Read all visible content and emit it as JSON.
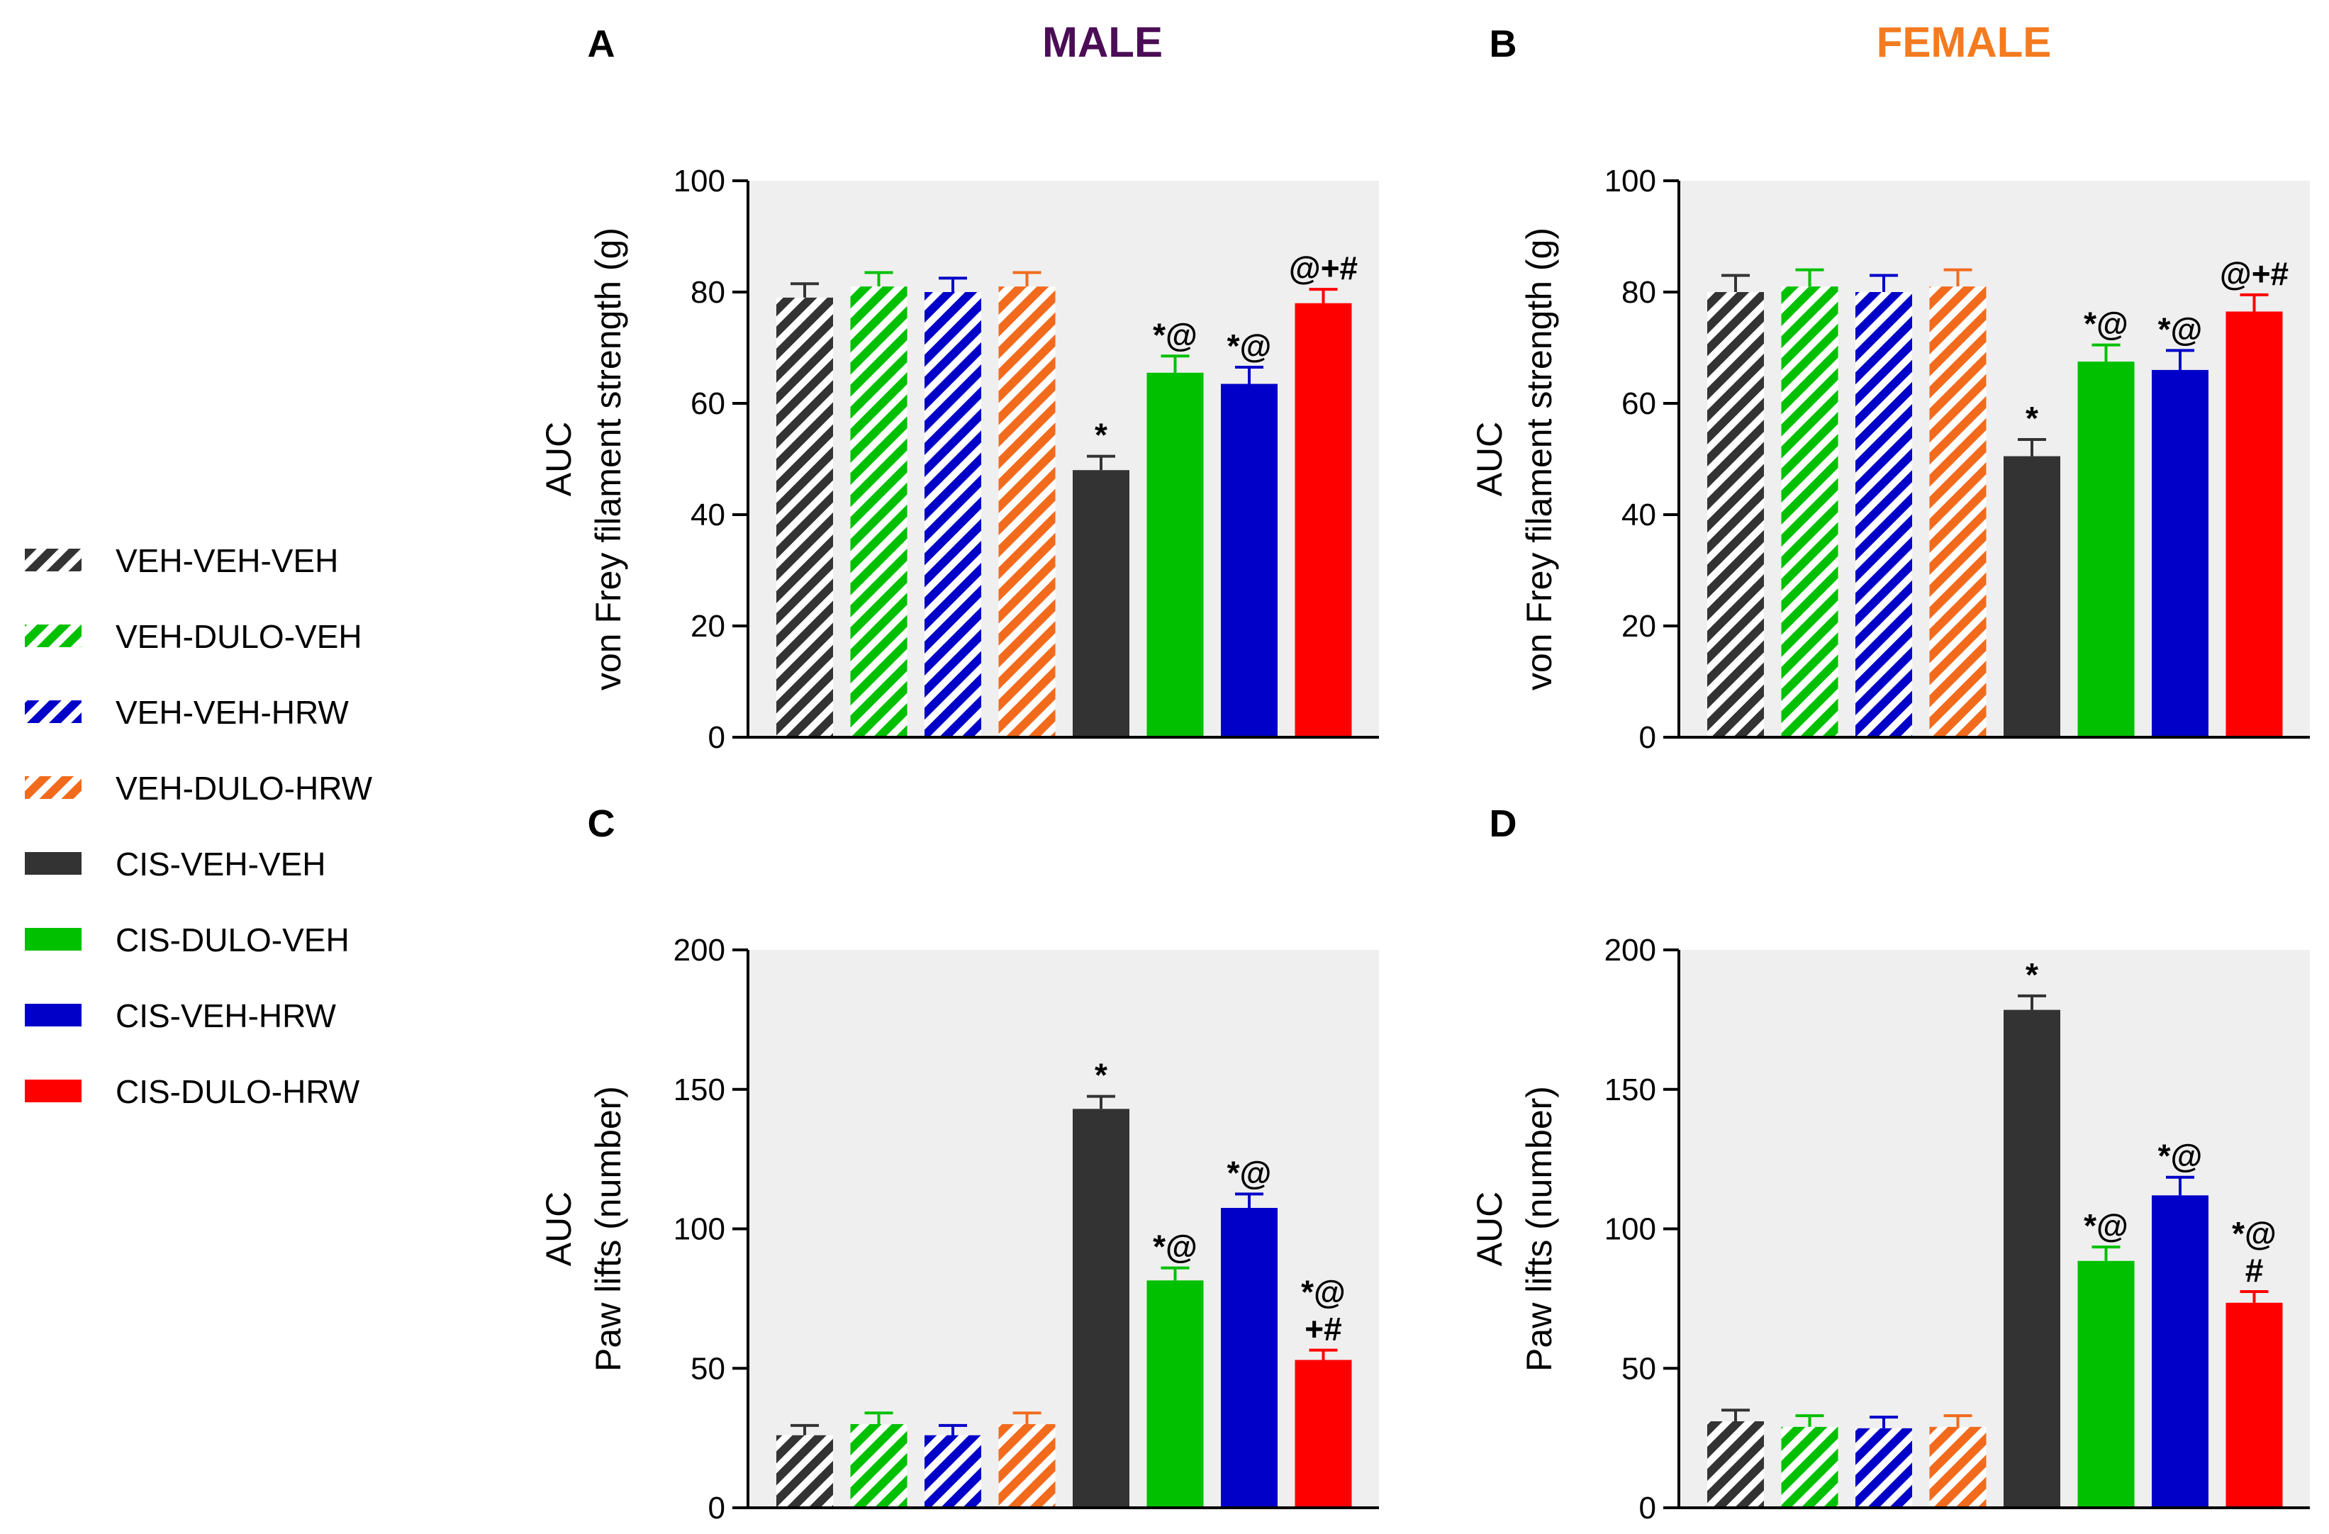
{
  "titles": {
    "male": "MALE",
    "female": "FEMALE"
  },
  "colors": {
    "male_title": "#4B0D55",
    "female_title": "#F47B20",
    "plot_bg": "#EFEFEF"
  },
  "legend": [
    {
      "label": "VEH-VEH-VEH",
      "color": "#333333",
      "hatched": true
    },
    {
      "label": "VEH-DULO-VEH",
      "color": "#00C000",
      "hatched": true
    },
    {
      "label": "VEH-VEH-HRW",
      "color": "#0000C8",
      "hatched": true
    },
    {
      "label": "VEH-DULO-HRW",
      "color": "#F26B1D",
      "hatched": true
    },
    {
      "label": "CIS-VEH-VEH",
      "color": "#333333",
      "hatched": false
    },
    {
      "label": "CIS-DULO-VEH",
      "color": "#00C000",
      "hatched": false
    },
    {
      "label": "CIS-VEH-HRW",
      "color": "#0000C8",
      "hatched": false
    },
    {
      "label": "CIS-DULO-HRW",
      "color": "#FF0000",
      "hatched": false
    }
  ],
  "chart_data": [
    {
      "panel": "A",
      "sex": "MALE",
      "type": "bar",
      "ylabel_line1": "AUC",
      "ylabel_line2": "von Frey filament strength (g)",
      "ylim": [
        0,
        100
      ],
      "yticks": [
        0,
        20,
        40,
        60,
        80,
        100
      ],
      "categories": [
        "VEH-VEH-VEH",
        "VEH-DULO-VEH",
        "VEH-VEH-HRW",
        "VEH-DULO-HRW",
        "CIS-VEH-VEH",
        "CIS-DULO-VEH",
        "CIS-VEH-HRW",
        "CIS-DULO-HRW"
      ],
      "values": [
        79,
        81,
        80,
        81,
        48,
        65.5,
        63.5,
        78
      ],
      "errors": [
        2.5,
        2.5,
        2.5,
        2.5,
        2.5,
        3,
        3,
        2.5
      ],
      "annotations": [
        [],
        [],
        [],
        [],
        [
          "*"
        ],
        [
          "*@"
        ],
        [
          "*@"
        ],
        [
          "@+#"
        ]
      ]
    },
    {
      "panel": "B",
      "sex": "FEMALE",
      "type": "bar",
      "ylabel_line1": "AUC",
      "ylabel_line2": "von Frey filament strength (g)",
      "ylim": [
        0,
        100
      ],
      "yticks": [
        0,
        20,
        40,
        60,
        80,
        100
      ],
      "categories": [
        "VEH-VEH-VEH",
        "VEH-DULO-VEH",
        "VEH-VEH-HRW",
        "VEH-DULO-HRW",
        "CIS-VEH-VEH",
        "CIS-DULO-VEH",
        "CIS-VEH-HRW",
        "CIS-DULO-HRW"
      ],
      "values": [
        80,
        81,
        80,
        81,
        50.5,
        67.5,
        66,
        76.5
      ],
      "errors": [
        3,
        3,
        3,
        3,
        3,
        3,
        3.5,
        3
      ],
      "annotations": [
        [],
        [],
        [],
        [],
        [
          "*"
        ],
        [
          "*@"
        ],
        [
          "*@"
        ],
        [
          "@+#"
        ]
      ]
    },
    {
      "panel": "C",
      "sex": "MALE",
      "type": "bar",
      "ylabel_line1": "AUC",
      "ylabel_line2": "Paw lifts (number)",
      "ylim": [
        0,
        200
      ],
      "yticks": [
        0,
        50,
        100,
        150,
        200
      ],
      "categories": [
        "VEH-VEH-VEH",
        "VEH-DULO-VEH",
        "VEH-VEH-HRW",
        "VEH-DULO-HRW",
        "CIS-VEH-VEH",
        "CIS-DULO-VEH",
        "CIS-VEH-HRW",
        "CIS-DULO-HRW"
      ],
      "values": [
        26,
        30,
        26,
        30,
        143,
        81.5,
        107.5,
        53
      ],
      "errors": [
        3.5,
        4,
        3.5,
        4,
        4.5,
        4.5,
        5,
        3.5
      ],
      "annotations": [
        [],
        [],
        [],
        [],
        [
          "*"
        ],
        [
          "*@"
        ],
        [
          "*@"
        ],
        [
          "+#",
          "*@"
        ]
      ]
    },
    {
      "panel": "D",
      "sex": "FEMALE",
      "type": "bar",
      "ylabel_line1": "AUC",
      "ylabel_line2": "Paw lifts (number)",
      "ylim": [
        0,
        200
      ],
      "yticks": [
        0,
        50,
        100,
        150,
        200
      ],
      "categories": [
        "VEH-VEH-VEH",
        "VEH-DULO-VEH",
        "VEH-VEH-HRW",
        "VEH-DULO-HRW",
        "CIS-VEH-VEH",
        "CIS-DULO-VEH",
        "CIS-VEH-HRW",
        "CIS-DULO-HRW"
      ],
      "values": [
        31,
        29,
        28.5,
        29,
        178.5,
        88.5,
        112,
        73.5
      ],
      "errors": [
        4,
        4,
        4,
        4,
        5,
        5,
        6.5,
        4
      ],
      "annotations": [
        [],
        [],
        [],
        [],
        [
          "*"
        ],
        [
          "*@"
        ],
        [
          "*@"
        ],
        [
          "#",
          "*@"
        ]
      ]
    }
  ]
}
